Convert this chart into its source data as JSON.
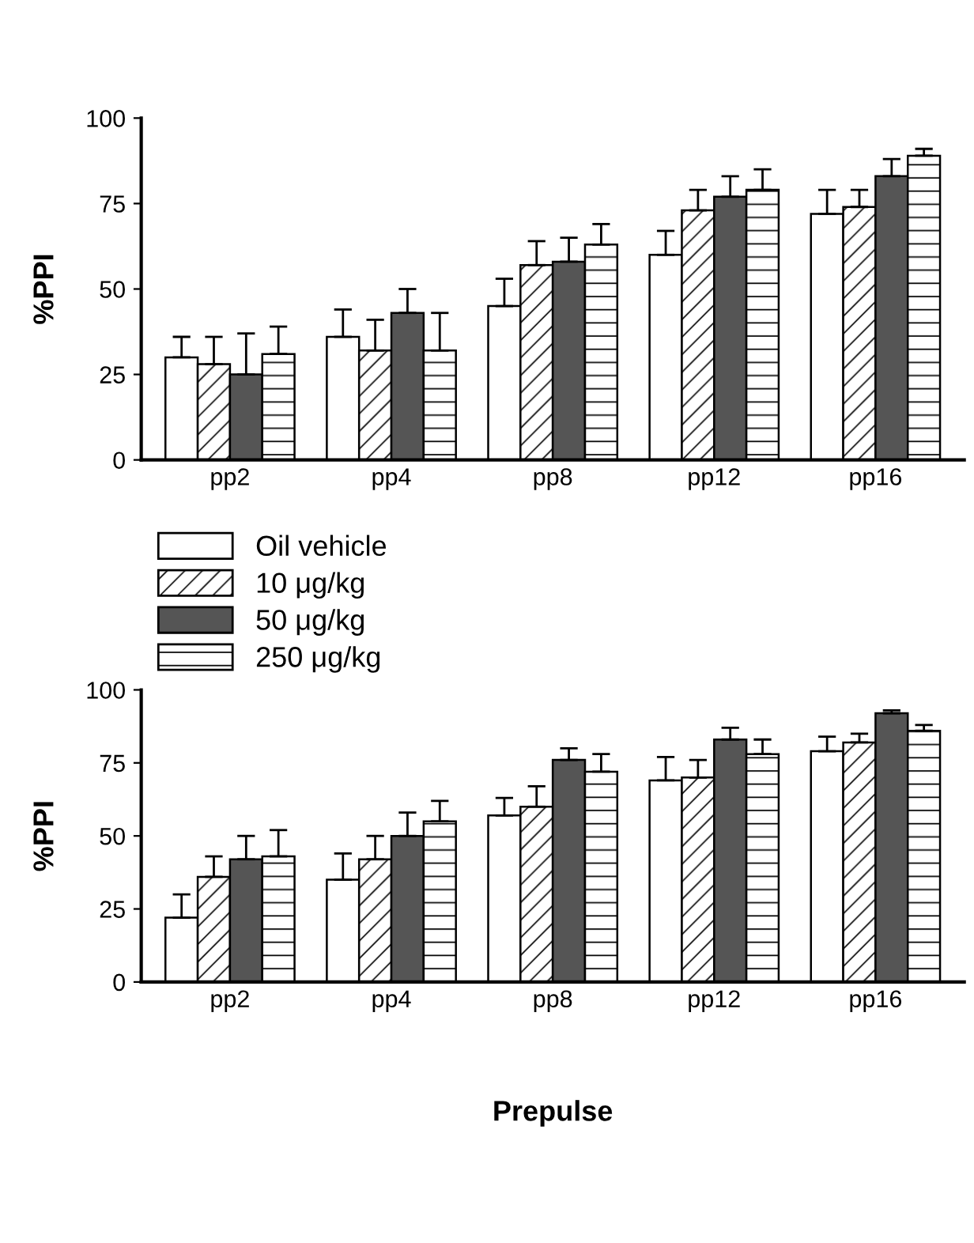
{
  "chart_data": [
    {
      "type": "bar",
      "ylabel": "%PPI",
      "categories": [
        "pp2",
        "pp4",
        "pp8",
        "pp12",
        "pp16"
      ],
      "ylim": [
        0,
        100
      ],
      "yticks": [
        0,
        25,
        50,
        75,
        100
      ],
      "grid": false,
      "legend": false,
      "series": [
        {
          "color": "#ffffff",
          "values": [
            30,
            36,
            45,
            60,
            72
          ],
          "errors": [
            [
              30,
              36
            ],
            [
              36,
              44
            ],
            [
              45,
              53
            ],
            [
              60,
              67
            ],
            [
              72,
              79
            ]
          ]
        },
        {
          "color": "#ffffff",
          "values": [
            28,
            32,
            57,
            73,
            74
          ],
          "errors": [
            [
              28,
              36
            ],
            [
              32,
              41
            ],
            [
              57,
              64
            ],
            [
              73,
              79
            ],
            [
              74,
              79
            ]
          ]
        },
        {
          "color": "#555555",
          "values": [
            25,
            43,
            58,
            77,
            83
          ],
          "errors": [
            [
              25,
              37
            ],
            [
              43,
              50
            ],
            [
              58,
              65
            ],
            [
              77,
              83
            ],
            [
              83,
              88
            ]
          ]
        },
        {
          "color": "#ffffff",
          "values": [
            31,
            32,
            63,
            79,
            89
          ],
          "errors": [
            [
              31,
              39
            ],
            [
              32,
              43
            ],
            [
              63,
              69
            ],
            [
              79,
              85
            ],
            [
              89,
              91
            ]
          ]
        }
      ]
    },
    {
      "type": "bar",
      "ylabel": "%PPI",
      "xlabel": "Prepulse",
      "categories": [
        "pp2",
        "pp4",
        "pp8",
        "pp12",
        "pp16"
      ],
      "ylim": [
        0,
        100
      ],
      "yticks": [
        0,
        25,
        50,
        75,
        100
      ],
      "grid": false,
      "legend": "top left",
      "series": [
        {
          "name": "Oil vehicle",
          "color": "#ffffff",
          "values": [
            22,
            35,
            57,
            69,
            79
          ],
          "errors": [
            [
              22,
              30
            ],
            [
              35,
              44
            ],
            [
              57,
              63
            ],
            [
              69,
              77
            ],
            [
              79,
              84
            ]
          ]
        },
        {
          "name": "10 μg/kg",
          "color": "#ffffff",
          "values": [
            36,
            42,
            60,
            70,
            82
          ],
          "errors": [
            [
              36,
              43
            ],
            [
              42,
              50
            ],
            [
              60,
              67
            ],
            [
              70,
              76
            ],
            [
              82,
              85
            ]
          ]
        },
        {
          "name": "50 μg/kg",
          "color": "#555555",
          "values": [
            42,
            50,
            76,
            83,
            92
          ],
          "errors": [
            [
              42,
              50
            ],
            [
              50,
              58
            ],
            [
              76,
              80
            ],
            [
              83,
              87
            ],
            [
              92,
              93
            ]
          ]
        },
        {
          "name": "250 μg/kg",
          "color": "#ffffff",
          "values": [
            43,
            55,
            72,
            78,
            86
          ],
          "errors": [
            [
              43,
              52
            ],
            [
              55,
              62
            ],
            [
              72,
              78
            ],
            [
              78,
              83
            ],
            [
              86,
              88
            ]
          ]
        }
      ]
    }
  ]
}
